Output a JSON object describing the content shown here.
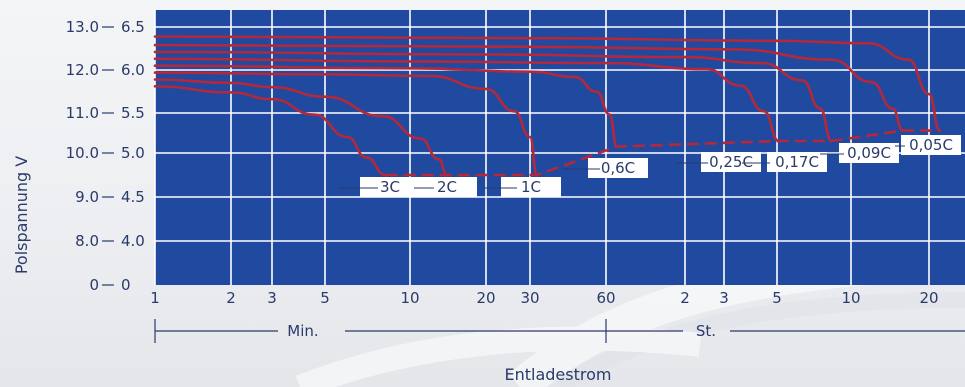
{
  "chart_data": {
    "type": "line",
    "title": "",
    "xlabel": "Entladestrom",
    "ylabel": "Polspannung V",
    "x_ticks": [
      {
        "label": "1",
        "minutes": 1
      },
      {
        "label": "2",
        "minutes": 2
      },
      {
        "label": "3",
        "minutes": 3
      },
      {
        "label": "5",
        "minutes": 5
      },
      {
        "label": "10",
        "minutes": 10
      },
      {
        "label": "20",
        "minutes": 20
      },
      {
        "label": "30",
        "minutes": 30
      },
      {
        "label": "60",
        "minutes": 60
      },
      {
        "label": "2",
        "minutes": 120
      },
      {
        "label": "3",
        "minutes": 180
      },
      {
        "label": "5",
        "minutes": 300
      },
      {
        "label": "10",
        "minutes": 600
      },
      {
        "label": "20",
        "minutes": 1200
      }
    ],
    "x_scale": "log",
    "x_segments": [
      {
        "label": "Min.",
        "from_minutes": 1,
        "to_minutes": 60
      },
      {
        "label": "St.",
        "from_minutes": 60,
        "to_minutes": 1500
      }
    ],
    "y_ticks_12v": [
      "0",
      "8.0",
      "9.0",
      "10.0",
      "11.0",
      "12.0",
      "13.0"
    ],
    "y_ticks_6v": [
      "0",
      "4.0",
      "4.5",
      "5.0",
      "5.5",
      "6.0",
      "6.5"
    ],
    "series": [
      {
        "name": "3C",
        "color": "#b5283a",
        "points": [
          [
            1,
            5.81
          ],
          [
            2,
            5.74
          ],
          [
            3,
            5.66
          ],
          [
            4.5,
            5.48
          ],
          [
            6,
            5.2
          ],
          [
            7,
            4.95
          ],
          [
            8.2,
            4.75
          ]
        ]
      },
      {
        "name": "2C",
        "color": "#b5283a",
        "points": [
          [
            1,
            5.89
          ],
          [
            2,
            5.85
          ],
          [
            3,
            5.8
          ],
          [
            5,
            5.69
          ],
          [
            8,
            5.46
          ],
          [
            11,
            5.18
          ],
          [
            13,
            4.93
          ],
          [
            14,
            4.75
          ]
        ]
      },
      {
        "name": "1C",
        "color": "#b5283a",
        "points": [
          [
            1,
            5.97
          ],
          [
            5,
            5.95
          ],
          [
            12,
            5.93
          ],
          [
            20,
            5.78
          ],
          [
            26,
            5.52
          ],
          [
            30,
            5.2
          ],
          [
            32,
            4.75
          ]
        ]
      },
      {
        "name": "0,6C",
        "color": "#b5283a",
        "points": [
          [
            1,
            6.05
          ],
          [
            10,
            6.02
          ],
          [
            30,
            5.98
          ],
          [
            45,
            5.92
          ],
          [
            55,
            5.75
          ],
          [
            62,
            5.48
          ],
          [
            66,
            5.08
          ]
        ]
      },
      {
        "name": "0,25C",
        "color": "#b5283a",
        "points": [
          [
            1,
            6.13
          ],
          [
            10,
            6.1
          ],
          [
            60,
            6.08
          ],
          [
            150,
            6.01
          ],
          [
            210,
            5.82
          ],
          [
            265,
            5.52
          ],
          [
            305,
            5.15
          ]
        ]
      },
      {
        "name": "0,17C",
        "color": "#b5283a",
        "points": [
          [
            1,
            6.21
          ],
          [
            20,
            6.18
          ],
          [
            120,
            6.15
          ],
          [
            260,
            6.08
          ],
          [
            380,
            5.88
          ],
          [
            450,
            5.55
          ],
          [
            500,
            5.15
          ]
        ]
      },
      {
        "name": "0,09C",
        "color": "#b5283a",
        "points": [
          [
            1,
            6.29
          ],
          [
            30,
            6.27
          ],
          [
            200,
            6.24
          ],
          [
            500,
            6.12
          ],
          [
            720,
            5.86
          ],
          [
            870,
            5.55
          ],
          [
            950,
            5.28
          ]
        ]
      },
      {
        "name": "0,05C",
        "color": "#b5283a",
        "points": [
          [
            1,
            6.39
          ],
          [
            30,
            6.37
          ],
          [
            300,
            6.34
          ],
          [
            700,
            6.31
          ],
          [
            1000,
            6.12
          ],
          [
            1200,
            5.72
          ],
          [
            1320,
            5.28
          ]
        ]
      }
    ],
    "end_line": {
      "style": "dashed",
      "color": "#b5283a",
      "points": [
        [
          8.2,
          4.75
        ],
        [
          32,
          4.75
        ],
        [
          66,
          5.08
        ],
        [
          305,
          5.15
        ],
        [
          500,
          5.15
        ],
        [
          950,
          5.28
        ],
        [
          1320,
          5.28
        ]
      ]
    },
    "grid": true,
    "legend": "none"
  }
}
